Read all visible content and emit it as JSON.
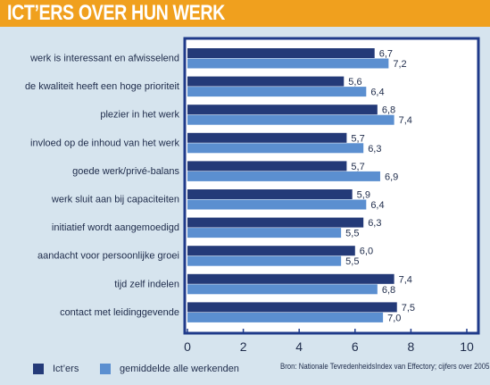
{
  "header": {
    "title": "ICT’ERS OVER HUN WERK"
  },
  "chart_data": {
    "type": "bar",
    "orientation": "horizontal",
    "categories": [
      "werk is interessant en afwisselend",
      "de kwaliteit heeft een hoge prioriteit",
      "plezier in het werk",
      "invloed op de inhoud van het werk",
      "goede werk/privé-balans",
      "werk sluit aan bij capaciteiten",
      "initiatief wordt aangemoedigd",
      "aandacht voor persoonlijke groei",
      "tijd zelf indelen",
      "contact met leidinggevende"
    ],
    "series": [
      {
        "name": "Ict’ers",
        "color": "#243a78",
        "values": [
          6.7,
          5.6,
          6.8,
          5.7,
          5.7,
          5.9,
          6.3,
          6.0,
          7.4,
          7.5
        ],
        "labels": [
          "6,7",
          "5,6",
          "6,8",
          "5,7",
          "5,7",
          "5,9",
          "6,3",
          "6,0",
          "7,4",
          "7,5"
        ]
      },
      {
        "name": "gemiddelde alle werkenden",
        "color": "#5b8fd0",
        "values": [
          7.2,
          6.4,
          7.4,
          6.3,
          6.9,
          6.4,
          5.5,
          5.5,
          6.8,
          7.0
        ],
        "labels": [
          "7,2",
          "6,4",
          "7,4",
          "6,3",
          "6,9",
          "6,4",
          "5,5",
          "5,5",
          "6,8",
          "7,0"
        ]
      }
    ],
    "xlim": [
      0,
      10
    ],
    "xticks": [
      "0",
      "2",
      "4",
      "6",
      "8",
      "10"
    ],
    "grid": false,
    "legend_position": "bottom-left"
  },
  "source": "Bron: Nationale TevredenheidsIndex van Effectory; cijfers over 2005",
  "colors": {
    "header": "#f0a01e",
    "background": "#d6e4ee",
    "frame": "#1f3a8a",
    "plot_bg": "#ffffff"
  }
}
